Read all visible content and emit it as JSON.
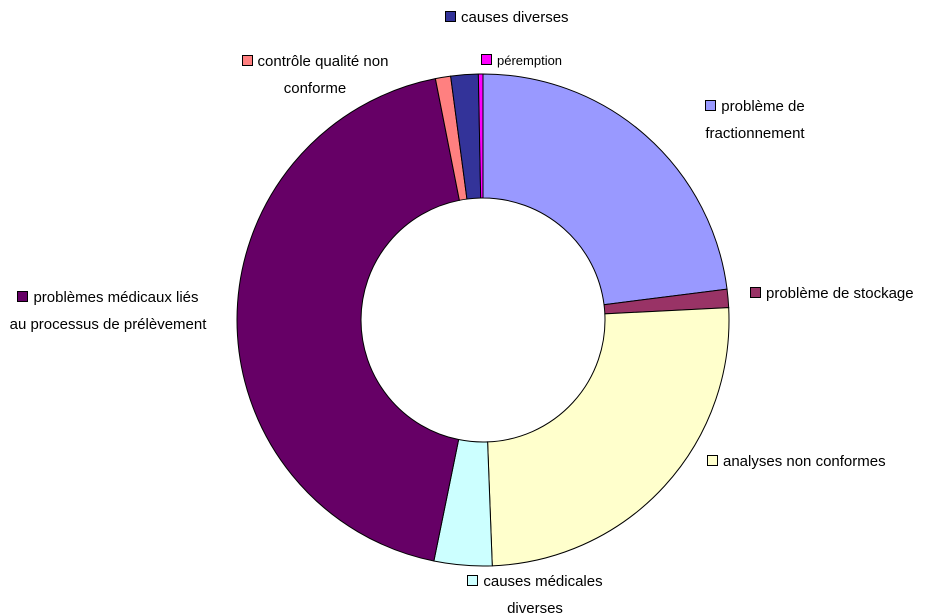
{
  "chart_data": {
    "type": "donut",
    "categories": [
      "problème de fractionnement",
      "problème de stockage",
      "analyses non conformes",
      "causes médicales diverses",
      "problèmes médicaux liés au processus de prélèvement",
      "contrôle qualité non conforme",
      "causes diverses",
      "péremption"
    ],
    "values": [
      23,
      1.2,
      25.2,
      3.8,
      43.7,
      1,
      1.8,
      0.3
    ],
    "colors": [
      "#9999ff",
      "#993366",
      "#ffffcc",
      "#ccffff",
      "#660066",
      "#ff8080",
      "#333399",
      "#ff00ff"
    ]
  }
}
